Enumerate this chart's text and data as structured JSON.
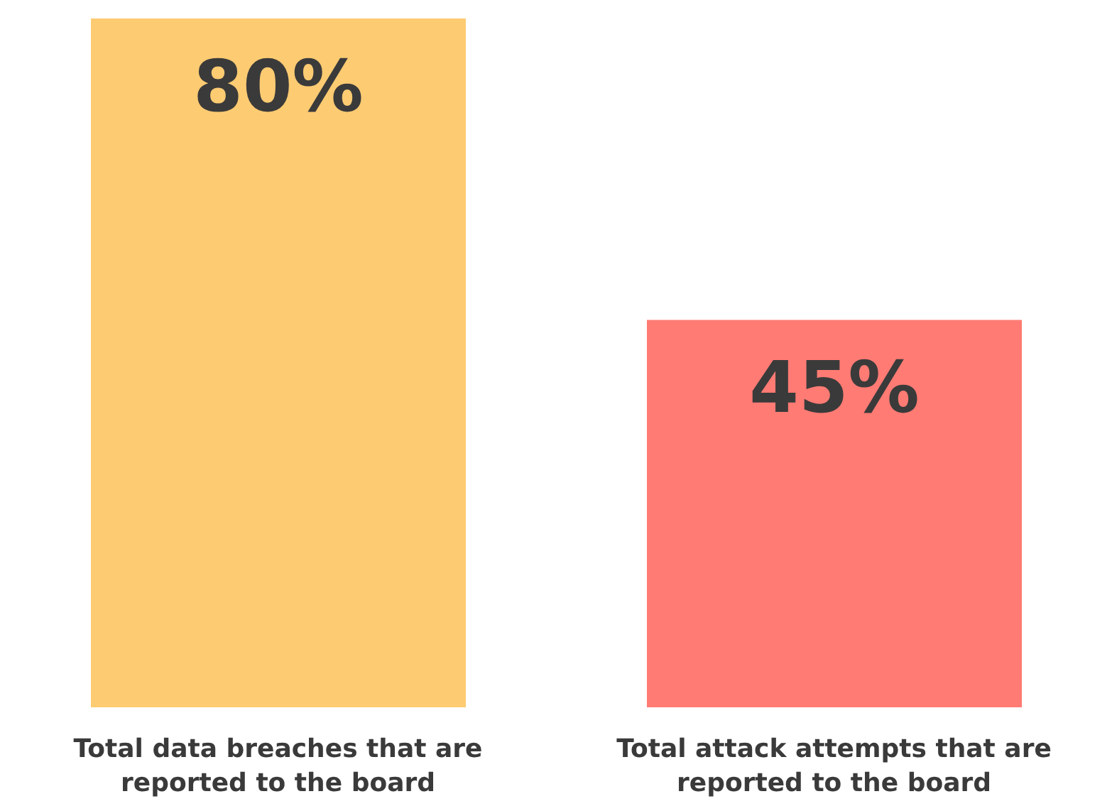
{
  "chart_data": {
    "type": "bar",
    "categories": [
      "Total data breaches that are reported to the board",
      "Total attack attempts that are reported to the board"
    ],
    "values": [
      80,
      45
    ],
    "colors": [
      "#fdcb72",
      "#ff7b74"
    ],
    "value_labels": [
      "80%",
      "45%"
    ],
    "grid": false,
    "legend": false
  }
}
